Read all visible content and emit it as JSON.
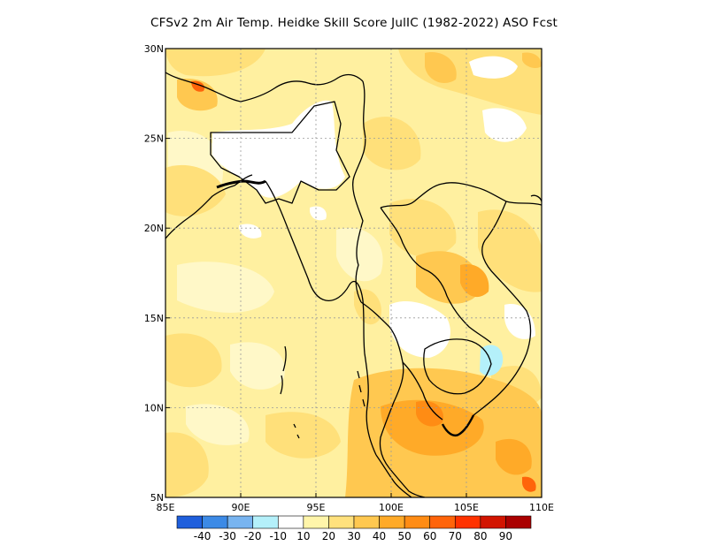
{
  "title": "CFSv2  2m Air Temp. Heidke Skill Score JulIC (1982-2022) ASO Fcst",
  "map": {
    "lon_range": [
      85,
      110
    ],
    "lat_range": [
      5,
      30
    ],
    "lon_ticks": [
      "85E",
      "90E",
      "95E",
      "100E",
      "105E",
      "110E"
    ],
    "lat_ticks": [
      "5N",
      "10N",
      "15N",
      "20N",
      "25N",
      "30N"
    ],
    "grid": "dotted"
  },
  "colorbar": {
    "colors": [
      "#1f5fdc",
      "#3c8ae6",
      "#78b4f0",
      "#b4f0fa",
      "#ffffff",
      "#fff5aa",
      "#ffe17d",
      "#ffc850",
      "#ffaa28",
      "#ff8c14",
      "#ff640a",
      "#ff3200",
      "#d21400",
      "#aa0000"
    ],
    "labels": [
      "-40",
      "-30",
      "-20",
      "-10",
      "10",
      "20",
      "30",
      "40",
      "50",
      "60",
      "70",
      "80",
      "90"
    ]
  },
  "colors": {
    "base": "#fff0a0",
    "low": "#fff8c8",
    "mid": "#ffe07a",
    "high": "#ffc850",
    "higher": "#ffaa28",
    "highest": "#ff8c14",
    "hot": "#ff640a",
    "white": "#ffffff",
    "negative": "#b4f0fa",
    "outline": "#000000"
  }
}
